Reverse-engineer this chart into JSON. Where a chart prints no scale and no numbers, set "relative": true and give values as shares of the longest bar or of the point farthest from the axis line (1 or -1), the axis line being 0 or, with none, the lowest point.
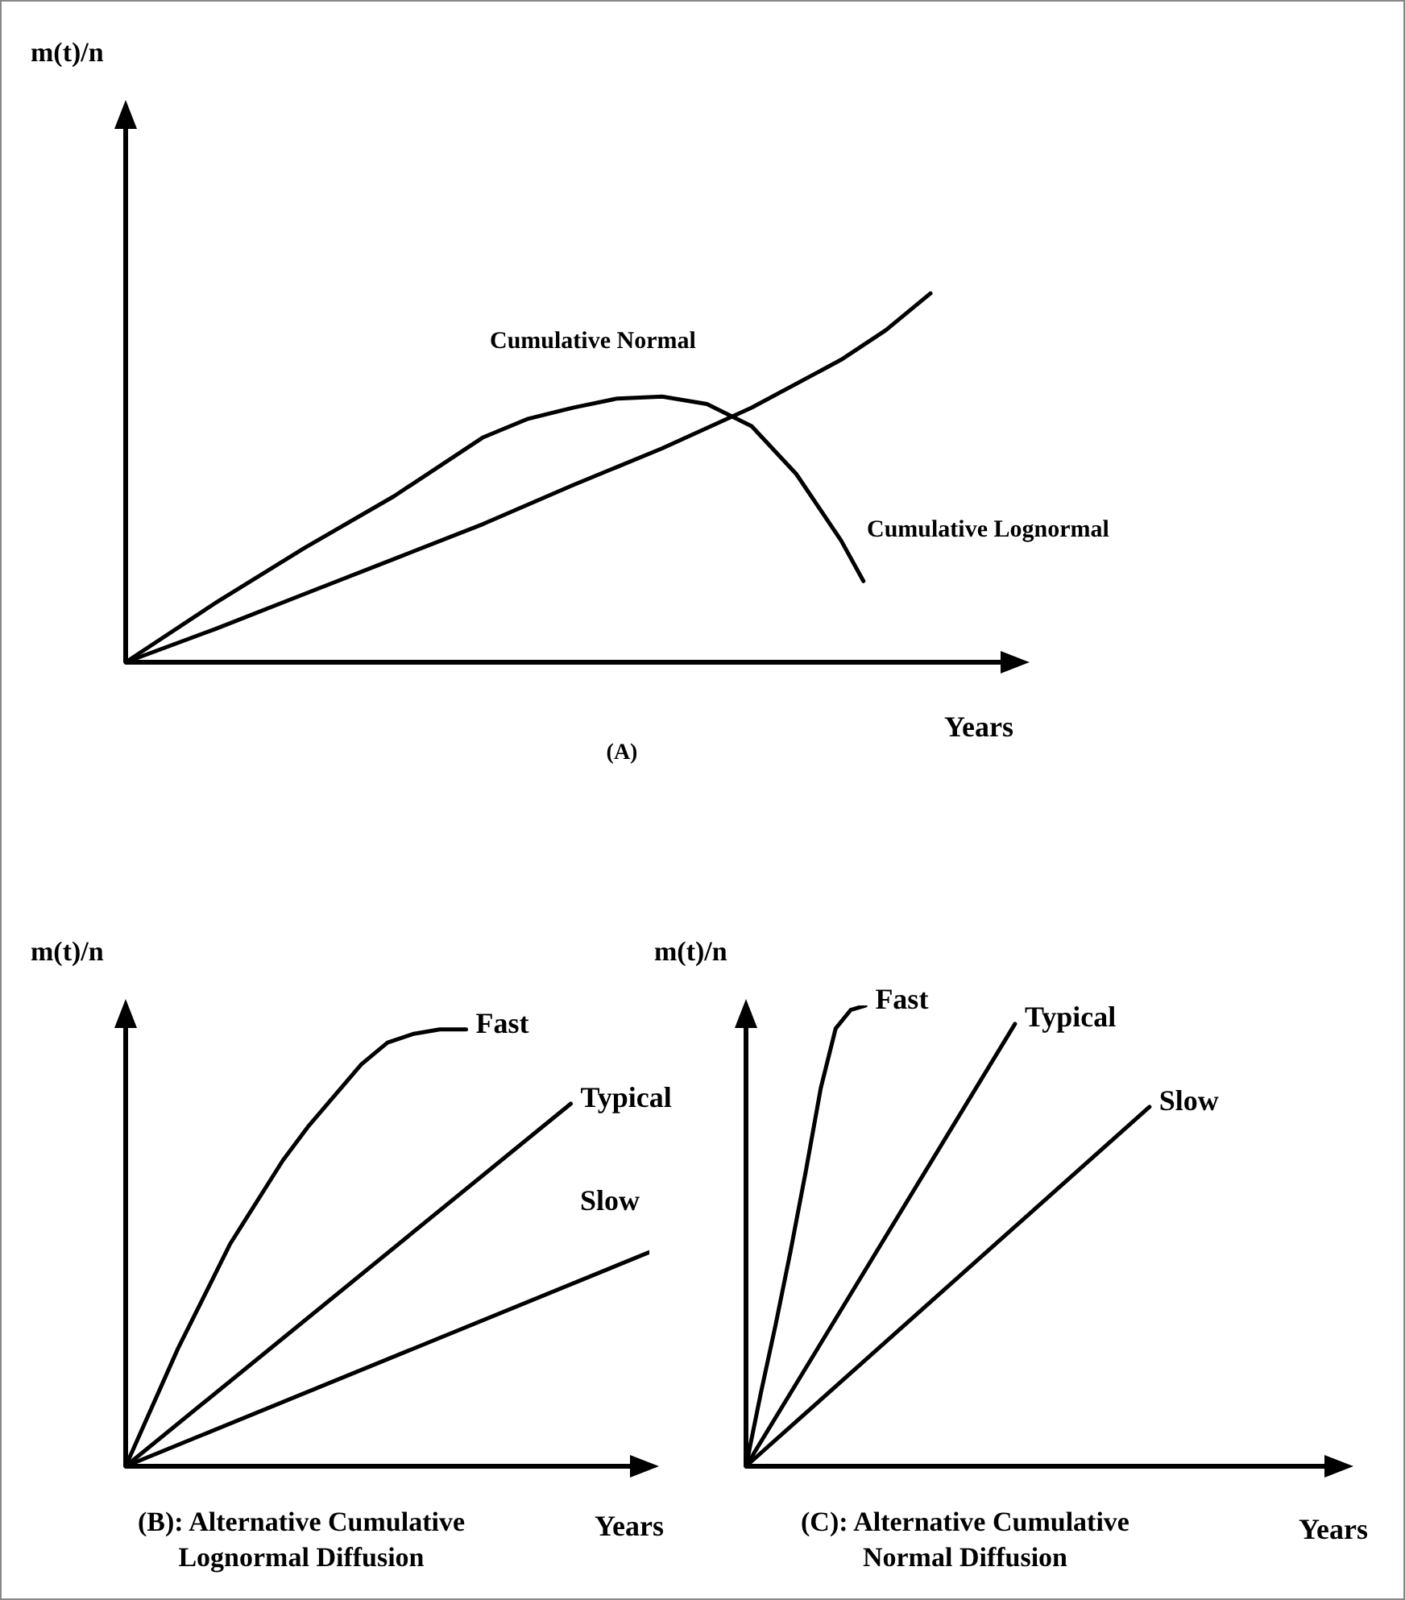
{
  "chart_data": [
    {
      "type": "line",
      "title": "(A)",
      "xlabel": "Years",
      "ylabel": "m(t)/n",
      "relative": true,
      "tick_labels": false,
      "marker": "none",
      "line_style": "solid",
      "annotations": [
        "Cumulative Normal",
        "Cumulative Lognormal"
      ],
      "categories": [
        null,
        null,
        null,
        null,
        null,
        null,
        null,
        null,
        null,
        null,
        null,
        null,
        null,
        null,
        null,
        null,
        null,
        null,
        null,
        null,
        null,
        null,
        null,
        null,
        null,
        null,
        null,
        null,
        null,
        null,
        null,
        null,
        null,
        null,
        null,
        null,
        null,
        null,
        null,
        null,
        null
      ],
      "series": [
        {
          "color": "#000000",
          "values": [
            0,
            null,
            null,
            null,
            0.09,
            null,
            null,
            null,
            0.185,
            null,
            null,
            null,
            0.28,
            null,
            null,
            null,
            0.375,
            null,
            null,
            null,
            0.48,
            null,
            null,
            null,
            0.58,
            null,
            null,
            null,
            0.69,
            null,
            null,
            null,
            0.82,
            null,
            0.9,
            null,
            1.0,
            null,
            null,
            null,
            null
          ]
        },
        {
          "color": "#000000",
          "values": [
            0,
            null,
            null,
            null,
            0.16,
            null,
            null,
            null,
            0.31,
            null,
            null,
            null,
            0.45,
            null,
            null,
            null,
            0.61,
            null,
            0.66,
            null,
            0.69,
            null,
            0.715,
            null,
            0.72,
            null,
            0.7,
            null,
            0.64,
            null,
            0.51,
            null,
            0.33,
            0.22,
            null,
            null,
            null,
            null,
            null,
            null,
            null
          ]
        }
      ]
    },
    {
      "type": "line",
      "title": "(B): Alternative Cumulative Lognormal Diffusion",
      "xlabel": "Years",
      "ylabel": "m(t)/n",
      "relative": true,
      "tick_labels": false,
      "marker": "none",
      "line_style": "solid",
      "categories": [
        null,
        null,
        null,
        null,
        null,
        null,
        null,
        null,
        null,
        null,
        null,
        null,
        null,
        null,
        null,
        null,
        null,
        null,
        null,
        null,
        null,
        null,
        null,
        null,
        null,
        null,
        null,
        null,
        null,
        null,
        null,
        null,
        null,
        null,
        null,
        null,
        null,
        null,
        null,
        null,
        null
      ],
      "series": [
        {
          "name": "Fast",
          "color": "#000000",
          "values": [
            0,
            null,
            null,
            null,
            0.27,
            null,
            null,
            null,
            0.51,
            null,
            null,
            null,
            0.7,
            null,
            0.78,
            null,
            0.85,
            null,
            0.92,
            null,
            0.97,
            null,
            0.99,
            null,
            1.0,
            null,
            1.0,
            null,
            null,
            null,
            null,
            null,
            null,
            null,
            null,
            null,
            null,
            null,
            null,
            null,
            null
          ]
        },
        {
          "name": "Typical",
          "color": "#000000",
          "values": [
            0,
            null,
            null,
            null,
            null,
            null,
            null,
            null,
            null,
            null,
            null,
            null,
            null,
            null,
            null,
            null,
            null,
            null,
            null,
            null,
            null,
            null,
            null,
            null,
            null,
            null,
            null,
            null,
            null,
            null,
            null,
            null,
            null,
            null,
            0.83,
            null,
            null,
            null,
            null,
            null,
            null
          ]
        },
        {
          "name": "Slow",
          "color": "#000000",
          "values": [
            0,
            null,
            null,
            null,
            null,
            null,
            null,
            null,
            null,
            null,
            null,
            null,
            null,
            null,
            null,
            null,
            null,
            null,
            null,
            null,
            null,
            null,
            null,
            null,
            null,
            null,
            null,
            null,
            null,
            null,
            null,
            null,
            null,
            null,
            null,
            null,
            null,
            null,
            null,
            null,
            0.49
          ]
        }
      ]
    },
    {
      "type": "line",
      "title": "(C): Alternative Cumulative Normal Diffusion",
      "xlabel": "Years",
      "ylabel": "m(t)/n",
      "relative": true,
      "tick_labels": false,
      "marker": "none",
      "line_style": "solid",
      "categories": [
        null,
        null,
        null,
        null,
        null,
        null,
        null,
        null,
        null,
        null,
        null,
        null,
        null,
        null,
        null,
        null,
        null,
        null,
        null,
        null,
        null,
        null,
        null,
        null,
        null,
        null,
        null,
        null,
        null,
        null,
        null,
        null,
        null,
        null,
        null,
        null,
        null,
        null,
        null,
        null,
        null
      ],
      "series": [
        {
          "name": "Fast",
          "color": "#000000",
          "values": [
            0,
            0.16,
            0.31,
            0.47,
            0.64,
            0.82,
            0.95,
            0.99,
            1.0,
            null,
            null,
            null,
            null,
            null,
            null,
            null,
            null,
            null,
            null,
            null,
            null,
            null,
            null,
            null,
            null,
            null,
            null,
            null,
            null,
            null,
            null,
            null,
            null,
            null,
            null,
            null,
            null,
            null,
            null,
            null,
            null
          ]
        },
        {
          "name": "Typical",
          "color": "#000000",
          "values": [
            0,
            null,
            null,
            null,
            null,
            null,
            null,
            null,
            null,
            null,
            null,
            null,
            null,
            null,
            null,
            null,
            null,
            null,
            0.96,
            null,
            null,
            null,
            null,
            null,
            null,
            null,
            null,
            null,
            null,
            null,
            null,
            null,
            null,
            null,
            null,
            null,
            null,
            null,
            null,
            null,
            null
          ]
        },
        {
          "name": "Slow",
          "color": "#000000",
          "values": [
            0,
            null,
            null,
            null,
            null,
            null,
            null,
            null,
            null,
            null,
            null,
            null,
            null,
            null,
            null,
            null,
            null,
            null,
            null,
            null,
            null,
            null,
            null,
            null,
            null,
            null,
            null,
            0.78,
            null,
            null,
            null,
            null,
            null,
            null,
            null,
            null,
            null,
            null,
            null,
            null,
            null
          ]
        }
      ]
    }
  ]
}
